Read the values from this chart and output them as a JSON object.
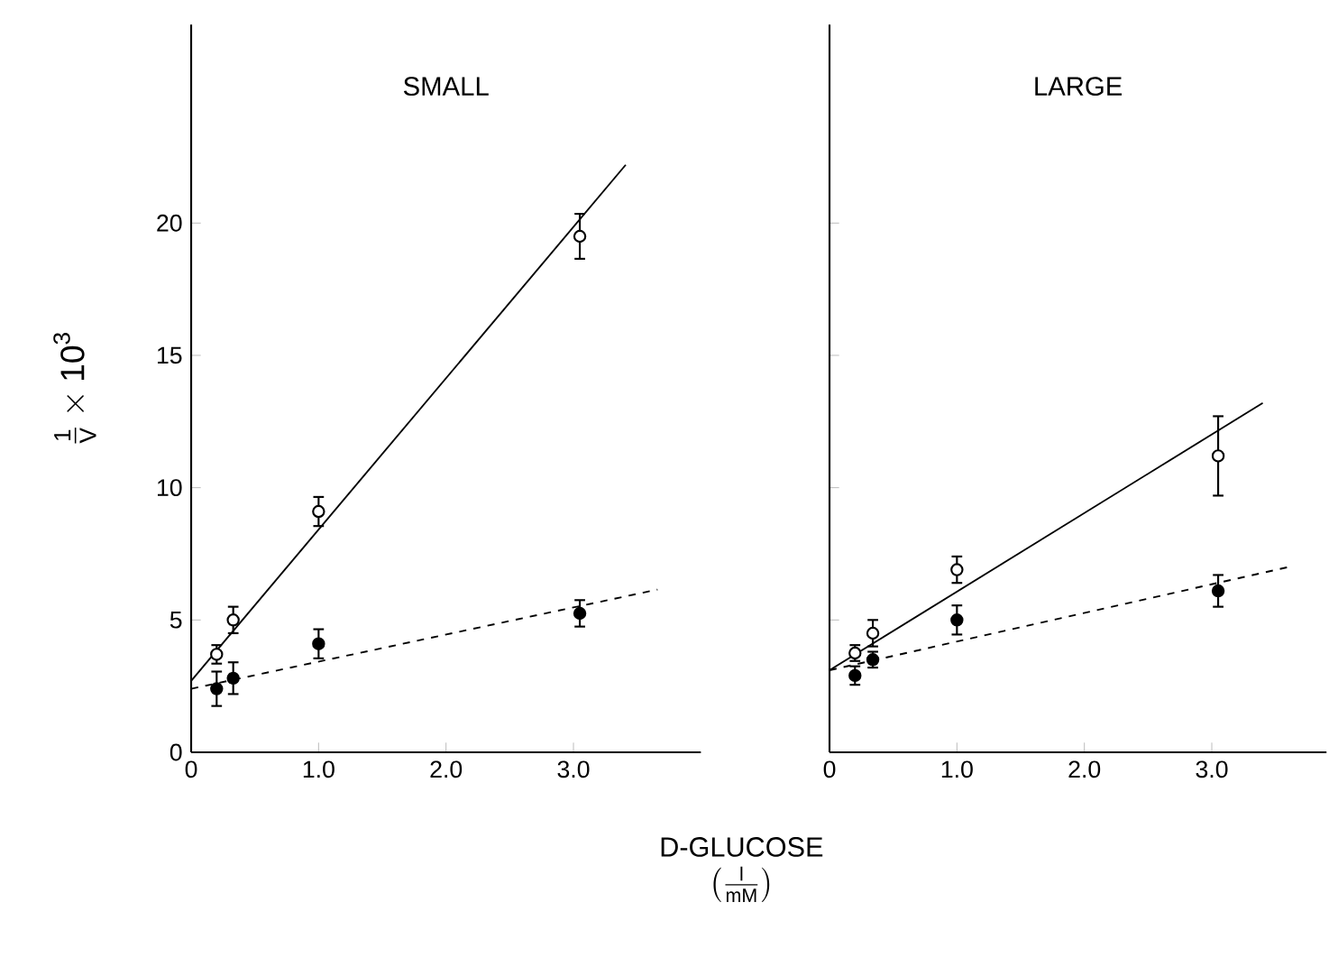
{
  "chart_data": [
    {
      "type": "scatter",
      "title": "SMALL",
      "ylabel": "\\frac{\\text{1}}{\\text{V}}\\times\\text{10}^{\\text{3}}",
      "xlabel": "\\begin{array}{c}\\text{D-GLUCOSE}\\\\ \\left(\\frac{\\text{l}}{\\text{mM}}\\right)\\end{array}",
      "xlim": [
        0,
        4.0
      ],
      "ylim": [
        0,
        27.5
      ],
      "xticks": [
        {
          "value": 0,
          "label": "0"
        },
        {
          "value": 1,
          "label": "1.0"
        },
        {
          "value": 2,
          "label": "2.0"
        },
        {
          "value": 3,
          "label": "3.0"
        }
      ],
      "yticks": [
        0,
        5,
        10,
        15,
        20
      ],
      "series": [
        {
          "color": "#000000",
          "marker": "circle",
          "x": [
            0.2,
            0.33,
            1.0,
            3.05
          ],
          "values": [
            3.7,
            5.0,
            9.1,
            19.5
          ],
          "errors": [
            0.35,
            0.5,
            0.55,
            0.85
          ]
        },
        {
          "color": "#000000",
          "marker": "circle",
          "x": [
            0.2,
            0.33,
            1.0,
            3.05
          ],
          "values": [
            2.4,
            2.8,
            4.1,
            5.25
          ],
          "errors": [
            0.65,
            0.6,
            0.55,
            0.5
          ]
        },
        {
          "type": "line",
          "color": "#000000",
          "line_style": "solid",
          "x": [
            0,
            3.41
          ],
          "values": [
            2.7,
            22.2
          ]
        },
        {
          "type": "line",
          "color": "#000000",
          "line_style": "dashed",
          "x": [
            0,
            3.66
          ],
          "values": [
            2.4,
            6.15
          ]
        }
      ]
    },
    {
      "type": "scatter",
      "title": "LARGE",
      "xlim": [
        0,
        3.9
      ],
      "ylim": [
        0,
        27.5
      ],
      "xticks": [
        {
          "value": 0,
          "label": "0"
        },
        {
          "value": 1,
          "label": "1.0"
        },
        {
          "value": 2,
          "label": "2.0"
        },
        {
          "value": 3,
          "label": "3.0"
        }
      ],
      "yticks": [
        0,
        5,
        10,
        15,
        20
      ],
      "tick_labels": "x",
      "series": [
        {
          "color": "#000000",
          "marker": "circle",
          "x": [
            0.2,
            0.34,
            1.0,
            3.05
          ],
          "values": [
            3.75,
            4.5,
            6.9,
            11.2
          ],
          "errors": [
            0.3,
            0.5,
            0.5,
            1.5
          ]
        },
        {
          "color": "#000000",
          "marker": "circle",
          "x": [
            0.2,
            0.34,
            1.0,
            3.05
          ],
          "values": [
            2.9,
            3.5,
            5.0,
            6.1
          ],
          "errors": [
            0.35,
            0.3,
            0.55,
            0.6
          ]
        },
        {
          "type": "line",
          "color": "#000000",
          "line_style": "solid",
          "x": [
            0,
            3.4
          ],
          "values": [
            3.1,
            13.2
          ]
        },
        {
          "type": "line",
          "color": "#000000",
          "line_style": "dashed",
          "x": [
            0,
            3.6
          ],
          "values": [
            3.1,
            7.0
          ]
        }
      ]
    }
  ]
}
